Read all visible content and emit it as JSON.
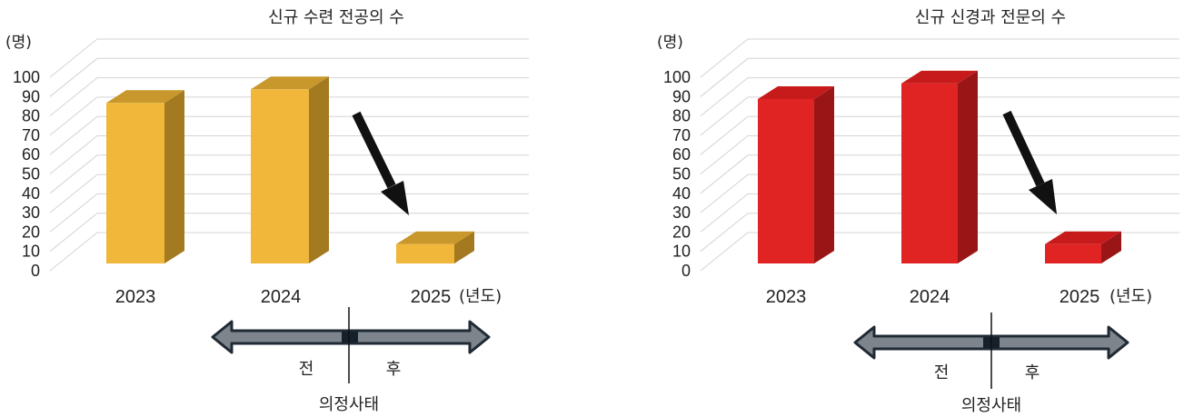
{
  "chart_data": [
    {
      "type": "bar",
      "title": "신규 수련 전공의 수",
      "ylabel": "(명)",
      "ylim": [
        0,
        100
      ],
      "yticks": [
        0,
        10,
        20,
        30,
        40,
        50,
        60,
        70,
        80,
        90,
        100
      ],
      "categories": [
        "2023",
        "2024",
        "2025"
      ],
      "x_suffix": "(년도)",
      "values": [
        83,
        90,
        10
      ],
      "colors": {
        "front": "#f0b73a",
        "top": "#c8982c",
        "side": "#a47a20"
      },
      "annotations": {
        "trend_arrow": "down-arrow",
        "period_before": "전",
        "period_after": "후",
        "event_label": "의정사태"
      }
    },
    {
      "type": "bar",
      "title": "신규 신경과 전문의 수",
      "ylabel": "(명)",
      "ylim": [
        0,
        100
      ],
      "yticks": [
        0,
        10,
        20,
        30,
        40,
        50,
        60,
        70,
        80,
        90,
        100
      ],
      "categories": [
        "2023",
        "2024",
        "2025"
      ],
      "x_suffix": "(년도)",
      "values": [
        85,
        93,
        10
      ],
      "colors": {
        "front": "#e02424",
        "top": "#c71b1b",
        "side": "#9a1616"
      },
      "annotations": {
        "trend_arrow": "down-arrow",
        "period_before": "전",
        "period_after": "후",
        "event_label": "의정사태"
      }
    }
  ]
}
